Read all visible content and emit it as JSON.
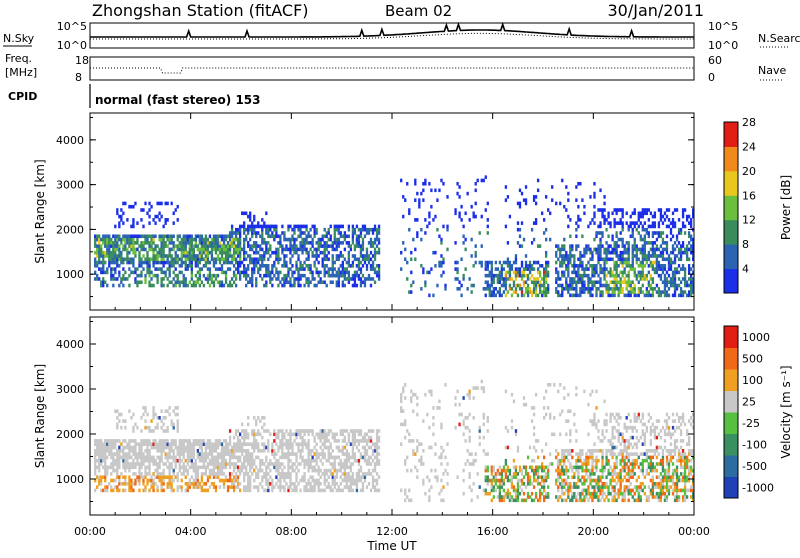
{
  "header": {
    "station": "Zhongshan Station (fitACF)",
    "beam": "Beam 02",
    "date": "30/Jan/2011"
  },
  "top_panel": {
    "left_label": "N.Sky",
    "right_label": "N.Search",
    "ytick_high": "10^5",
    "ytick_low": "10^0",
    "rtick_high": "10^5",
    "rtick_low": "10^0"
  },
  "freq_panel": {
    "label_line1": "Freq.",
    "label_line2": "[MHz]",
    "ytick_high": "18",
    "ytick_low": "8",
    "right_label": "Nave",
    "rtick_high": "60",
    "rtick_low": "0"
  },
  "cpid_panel": {
    "label": "CPID",
    "text": "normal (fast stereo) 153"
  },
  "chart_data": [
    {
      "type": "heatmap",
      "name": "power",
      "ylabel": "Slant Range [km]",
      "colorbar_label": "Power [dB]",
      "ylim": [
        200,
        4600
      ],
      "yticks": [
        1000,
        2000,
        3000,
        4000
      ],
      "colorbar_ticks": [
        "4",
        "8",
        "12",
        "16",
        "20",
        "24",
        "28"
      ],
      "colors": [
        "#1b2ee8",
        "#2c64b4",
        "#3a8c5c",
        "#6cbf3c",
        "#e8c81e",
        "#f08a1a",
        "#e01e14"
      ]
    },
    {
      "type": "heatmap",
      "name": "velocity",
      "ylabel": "Slant Range [km]",
      "colorbar_label": "Velocity [m s⁻¹]",
      "ylim": [
        200,
        4600
      ],
      "yticks": [
        1000,
        2000,
        3000,
        4000
      ],
      "colorbar_ticks": [
        "1000",
        "500",
        "100",
        "25",
        "-25",
        "-100",
        "-500",
        "-1000"
      ],
      "colors": [
        "#2040b8",
        "#2c6ca0",
        "#3a9060",
        "#58c040",
        "#c8c8c8",
        "#f0a020",
        "#f06818",
        "#e01e14"
      ],
      "xlabel": "Time UT",
      "xticks": [
        "00:00",
        "04:00",
        "08:00",
        "12:00",
        "16:00",
        "20:00",
        "00:00"
      ]
    }
  ]
}
